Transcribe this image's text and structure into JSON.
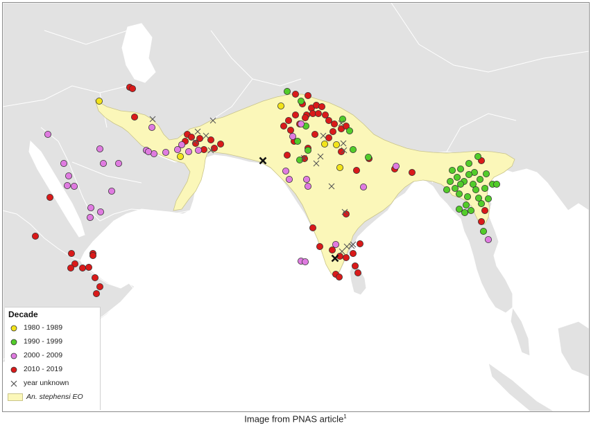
{
  "legend": {
    "title": "Decade",
    "items": [
      {
        "label": "1980 - 1989",
        "symbol": "circle",
        "color": "#f2e31a"
      },
      {
        "label": "1990 - 1999",
        "symbol": "circle",
        "color": "#52cc2a"
      },
      {
        "label": "2000 - 2009",
        "symbol": "circle",
        "color": "#df7be0"
      },
      {
        "label": "2010 - 2019",
        "symbol": "circle",
        "color": "#d91a1a"
      },
      {
        "label": "year unknown",
        "symbol": "x-mark",
        "color": "#555555"
      },
      {
        "label": "An. stephensi EO",
        "symbol": "area",
        "color": "#fbf7b9"
      }
    ]
  },
  "caption": {
    "text": "Image from PNAS article",
    "superscript": "1"
  },
  "colors": {
    "land": "#e2e2e2",
    "water": "#ffffff",
    "range": "#fbf7b9"
  }
}
